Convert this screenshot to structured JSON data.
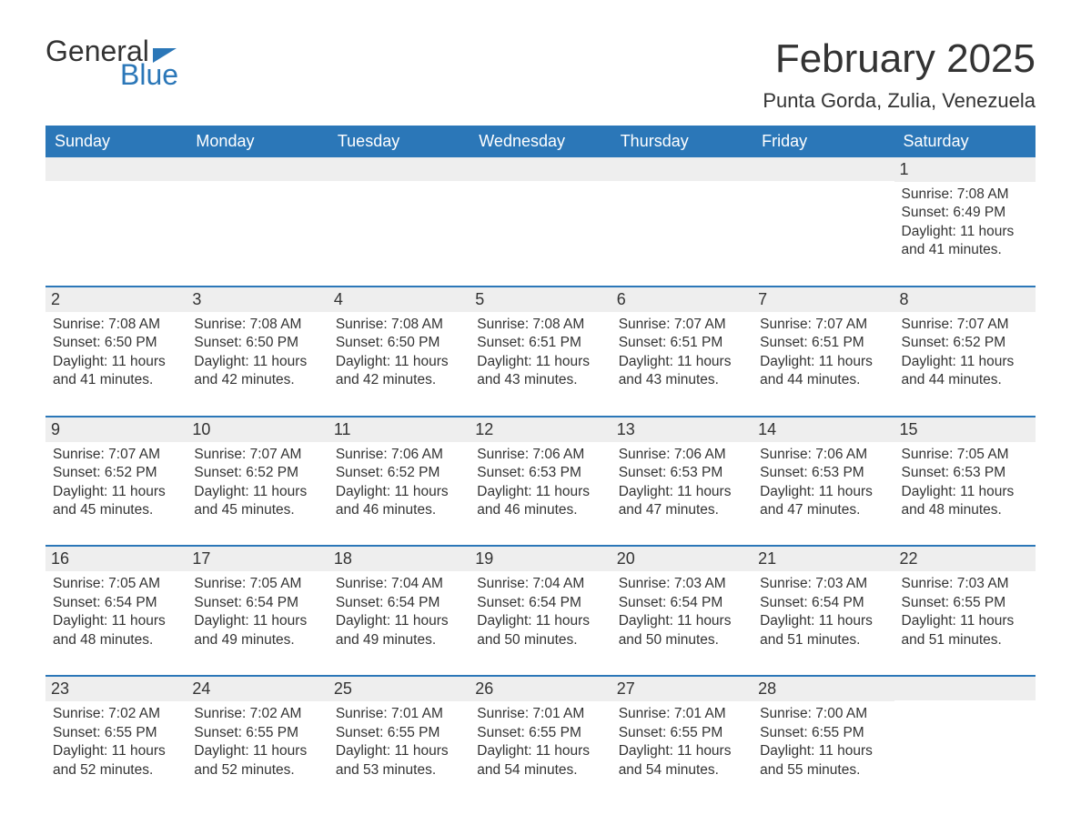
{
  "logo": {
    "line1": "General",
    "line2": "Blue",
    "flag_color": "#2b77b8"
  },
  "colors": {
    "header_bg": "#2b77b8",
    "header_text": "#ffffff",
    "daynum_bg": "#eeeeee",
    "text": "#333333",
    "rule": "#2b77b8",
    "page_bg": "#ffffff"
  },
  "fonts": {
    "title_size_pt": 33,
    "location_size_pt": 17,
    "dow_size_pt": 14,
    "daynum_size_pt": 14,
    "body_size_pt": 12
  },
  "title": "February 2025",
  "location": "Punta Gorda, Zulia, Venezuela",
  "days_of_week": [
    "Sunday",
    "Monday",
    "Tuesday",
    "Wednesday",
    "Thursday",
    "Friday",
    "Saturday"
  ],
  "labels": {
    "sunrise": "Sunrise",
    "sunset": "Sunset",
    "daylight": "Daylight"
  },
  "weeks": [
    [
      {
        "day": null
      },
      {
        "day": null
      },
      {
        "day": null
      },
      {
        "day": null
      },
      {
        "day": null
      },
      {
        "day": null
      },
      {
        "day": 1,
        "sunrise": "7:08 AM",
        "sunset": "6:49 PM",
        "daylight": "11 hours and 41 minutes."
      }
    ],
    [
      {
        "day": 2,
        "sunrise": "7:08 AM",
        "sunset": "6:50 PM",
        "daylight": "11 hours and 41 minutes."
      },
      {
        "day": 3,
        "sunrise": "7:08 AM",
        "sunset": "6:50 PM",
        "daylight": "11 hours and 42 minutes."
      },
      {
        "day": 4,
        "sunrise": "7:08 AM",
        "sunset": "6:50 PM",
        "daylight": "11 hours and 42 minutes."
      },
      {
        "day": 5,
        "sunrise": "7:08 AM",
        "sunset": "6:51 PM",
        "daylight": "11 hours and 43 minutes."
      },
      {
        "day": 6,
        "sunrise": "7:07 AM",
        "sunset": "6:51 PM",
        "daylight": "11 hours and 43 minutes."
      },
      {
        "day": 7,
        "sunrise": "7:07 AM",
        "sunset": "6:51 PM",
        "daylight": "11 hours and 44 minutes."
      },
      {
        "day": 8,
        "sunrise": "7:07 AM",
        "sunset": "6:52 PM",
        "daylight": "11 hours and 44 minutes."
      }
    ],
    [
      {
        "day": 9,
        "sunrise": "7:07 AM",
        "sunset": "6:52 PM",
        "daylight": "11 hours and 45 minutes."
      },
      {
        "day": 10,
        "sunrise": "7:07 AM",
        "sunset": "6:52 PM",
        "daylight": "11 hours and 45 minutes."
      },
      {
        "day": 11,
        "sunrise": "7:06 AM",
        "sunset": "6:52 PM",
        "daylight": "11 hours and 46 minutes."
      },
      {
        "day": 12,
        "sunrise": "7:06 AM",
        "sunset": "6:53 PM",
        "daylight": "11 hours and 46 minutes."
      },
      {
        "day": 13,
        "sunrise": "7:06 AM",
        "sunset": "6:53 PM",
        "daylight": "11 hours and 47 minutes."
      },
      {
        "day": 14,
        "sunrise": "7:06 AM",
        "sunset": "6:53 PM",
        "daylight": "11 hours and 47 minutes."
      },
      {
        "day": 15,
        "sunrise": "7:05 AM",
        "sunset": "6:53 PM",
        "daylight": "11 hours and 48 minutes."
      }
    ],
    [
      {
        "day": 16,
        "sunrise": "7:05 AM",
        "sunset": "6:54 PM",
        "daylight": "11 hours and 48 minutes."
      },
      {
        "day": 17,
        "sunrise": "7:05 AM",
        "sunset": "6:54 PM",
        "daylight": "11 hours and 49 minutes."
      },
      {
        "day": 18,
        "sunrise": "7:04 AM",
        "sunset": "6:54 PM",
        "daylight": "11 hours and 49 minutes."
      },
      {
        "day": 19,
        "sunrise": "7:04 AM",
        "sunset": "6:54 PM",
        "daylight": "11 hours and 50 minutes."
      },
      {
        "day": 20,
        "sunrise": "7:03 AM",
        "sunset": "6:54 PM",
        "daylight": "11 hours and 50 minutes."
      },
      {
        "day": 21,
        "sunrise": "7:03 AM",
        "sunset": "6:54 PM",
        "daylight": "11 hours and 51 minutes."
      },
      {
        "day": 22,
        "sunrise": "7:03 AM",
        "sunset": "6:55 PM",
        "daylight": "11 hours and 51 minutes."
      }
    ],
    [
      {
        "day": 23,
        "sunrise": "7:02 AM",
        "sunset": "6:55 PM",
        "daylight": "11 hours and 52 minutes."
      },
      {
        "day": 24,
        "sunrise": "7:02 AM",
        "sunset": "6:55 PM",
        "daylight": "11 hours and 52 minutes."
      },
      {
        "day": 25,
        "sunrise": "7:01 AM",
        "sunset": "6:55 PM",
        "daylight": "11 hours and 53 minutes."
      },
      {
        "day": 26,
        "sunrise": "7:01 AM",
        "sunset": "6:55 PM",
        "daylight": "11 hours and 54 minutes."
      },
      {
        "day": 27,
        "sunrise": "7:01 AM",
        "sunset": "6:55 PM",
        "daylight": "11 hours and 54 minutes."
      },
      {
        "day": 28,
        "sunrise": "7:00 AM",
        "sunset": "6:55 PM",
        "daylight": "11 hours and 55 minutes."
      },
      {
        "day": null
      }
    ]
  ]
}
